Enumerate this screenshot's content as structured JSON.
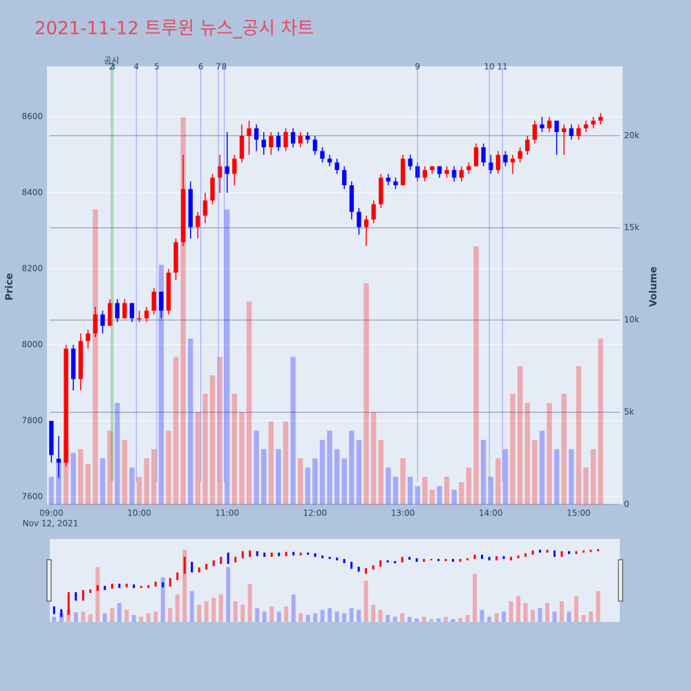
{
  "chart_data": {
    "type": "candlestick",
    "title": "2021-11-12 트루윈 뉴스_공시 차트",
    "y_label": "Price",
    "y2_label": "Volume",
    "date_label": "Nov 12, 2021",
    "up_color": "#ff0000",
    "down_color": "#0000ff",
    "x": [
      "09:00",
      "09:05",
      "09:10",
      "09:15",
      "09:20",
      "09:25",
      "09:30",
      "09:35",
      "09:40",
      "09:45",
      "09:50",
      "09:55",
      "10:00",
      "10:05",
      "10:10",
      "10:15",
      "10:20",
      "10:25",
      "10:30",
      "10:35",
      "10:40",
      "10:45",
      "10:50",
      "10:55",
      "11:00",
      "11:05",
      "11:10",
      "11:15",
      "11:20",
      "11:25",
      "11:30",
      "11:35",
      "11:40",
      "11:45",
      "11:50",
      "11:55",
      "12:00",
      "12:05",
      "12:10",
      "12:15",
      "12:20",
      "12:25",
      "12:30",
      "12:35",
      "12:40",
      "12:45",
      "12:50",
      "12:55",
      "13:00",
      "13:05",
      "13:10",
      "13:15",
      "13:20",
      "13:25",
      "13:30",
      "13:35",
      "13:40",
      "13:45",
      "13:50",
      "13:55",
      "14:00",
      "14:05",
      "14:10",
      "14:15",
      "14:20",
      "14:25",
      "14:30",
      "14:35",
      "14:40",
      "14:45",
      "14:50",
      "14:55",
      "15:00",
      "15:05",
      "15:10",
      "15:15"
    ],
    "open": [
      7800,
      7700,
      7690,
      7990,
      7910,
      8010,
      8030,
      8080,
      8050,
      8110,
      8070,
      8110,
      8070,
      8070,
      8090,
      8140,
      8090,
      8190,
      8270,
      8410,
      8310,
      8340,
      8380,
      8440,
      8470,
      8450,
      8490,
      8550,
      8570,
      8540,
      8520,
      8550,
      8520,
      8560,
      8530,
      8550,
      8540,
      8510,
      8490,
      8480,
      8460,
      8420,
      8350,
      8310,
      8330,
      8370,
      8440,
      8430,
      8420,
      8490,
      8470,
      8440,
      8460,
      8470,
      8450,
      8460,
      8440,
      8460,
      8470,
      8520,
      8480,
      8460,
      8500,
      8480,
      8490,
      8510,
      8540,
      8580,
      8570,
      8590,
      8560,
      8570,
      8550,
      8570,
      8580,
      8590
    ],
    "high": [
      7800,
      7760,
      8000,
      8000,
      8030,
      8040,
      8100,
      8090,
      8120,
      8120,
      8120,
      8110,
      8090,
      8100,
      8150,
      8140,
      8200,
      8280,
      8500,
      8430,
      8350,
      8400,
      8450,
      8500,
      8560,
      8500,
      8580,
      8590,
      8580,
      8560,
      8560,
      8560,
      8570,
      8570,
      8560,
      8560,
      8550,
      8520,
      8500,
      8490,
      8470,
      8430,
      8360,
      8340,
      8380,
      8450,
      8450,
      8440,
      8500,
      8500,
      8480,
      8470,
      8470,
      8470,
      8470,
      8470,
      8470,
      8480,
      8530,
      8530,
      8500,
      8510,
      8510,
      8500,
      8520,
      8550,
      8590,
      8600,
      8600,
      8590,
      8580,
      8580,
      8580,
      8590,
      8600,
      8610
    ],
    "low": [
      7690,
      7650,
      7680,
      7880,
      7880,
      7990,
      8020,
      8030,
      8050,
      8060,
      8070,
      8060,
      8060,
      8060,
      8080,
      8070,
      8080,
      8170,
      8260,
      8280,
      8280,
      8320,
      8370,
      8400,
      8400,
      8420,
      8480,
      8500,
      8510,
      8500,
      8500,
      8510,
      8510,
      8520,
      8520,
      8530,
      8500,
      8480,
      8470,
      8450,
      8410,
      8330,
      8290,
      8260,
      8320,
      8360,
      8420,
      8410,
      8420,
      8460,
      8430,
      8430,
      8450,
      8440,
      8440,
      8430,
      8430,
      8450,
      8470,
      8470,
      8450,
      8450,
      8470,
      8450,
      8480,
      8500,
      8530,
      8560,
      8560,
      8500,
      8500,
      8540,
      8540,
      8560,
      8570,
      8580
    ],
    "close": [
      7710,
      7690,
      7990,
      7910,
      8010,
      8030,
      8080,
      8050,
      8110,
      8070,
      8110,
      8070,
      8070,
      8090,
      8140,
      8090,
      8190,
      8270,
      8410,
      8310,
      8340,
      8380,
      8440,
      8470,
      8450,
      8490,
      8550,
      8570,
      8540,
      8520,
      8550,
      8520,
      8560,
      8530,
      8550,
      8540,
      8510,
      8490,
      8480,
      8460,
      8420,
      8350,
      8310,
      8330,
      8370,
      8440,
      8430,
      8420,
      8490,
      8470,
      8440,
      8460,
      8470,
      8450,
      8460,
      8440,
      8460,
      8470,
      8520,
      8480,
      8460,
      8500,
      8480,
      8490,
      8510,
      8540,
      8580,
      8570,
      8590,
      8560,
      8570,
      8550,
      8570,
      8580,
      8590,
      8600
    ],
    "volume": [
      1500,
      2500,
      3500,
      2800,
      3000,
      2200,
      16000,
      2500,
      4000,
      5500,
      3500,
      2000,
      1500,
      2500,
      3000,
      13000,
      4000,
      8000,
      21000,
      9000,
      5000,
      6000,
      7000,
      8000,
      16000,
      6000,
      5000,
      11000,
      4000,
      3000,
      4500,
      3000,
      4500,
      8000,
      2500,
      2000,
      2500,
      3500,
      4000,
      3000,
      2500,
      4000,
      3500,
      12000,
      5000,
      3500,
      2000,
      1500,
      2500,
      1500,
      1000,
      1500,
      800,
      1000,
      1500,
      800,
      1200,
      2000,
      14000,
      3500,
      1500,
      2500,
      3000,
      6000,
      7500,
      5500,
      3500,
      4000,
      5500,
      3000,
      6000,
      3000,
      7500,
      2000,
      3000,
      9000
    ],
    "xlim": [
      "08:57",
      "15:30"
    ],
    "xticks": [
      "09:00",
      "10:00",
      "11:00",
      "12:00",
      "13:00",
      "14:00",
      "15:00"
    ],
    "ylim": [
      7580,
      8733
    ],
    "yticks": [
      7600,
      7800,
      8000,
      8200,
      8400,
      8600
    ],
    "y2lim": [
      0,
      23760
    ],
    "y2ticks": [
      0,
      {
        "value": 5000,
        "label": "5k"
      },
      {
        "value": 10000,
        "label": "10k"
      },
      {
        "value": 15000,
        "label": "15k"
      },
      {
        "value": 20000,
        "label": "20k"
      }
    ],
    "disclosure_label": "공시",
    "events": [
      {
        "x": "09:41",
        "label": "2",
        "color": "#3cb043"
      },
      {
        "x": "09:42",
        "label": "3",
        "color": "#3cb043"
      },
      {
        "x": "09:58",
        "label": "4",
        "color": "#6f7fff"
      },
      {
        "x": "10:12",
        "label": "5",
        "color": "#6f7fff"
      },
      {
        "x": "10:42",
        "label": "6",
        "color": "#6f7fff"
      },
      {
        "x": "10:54",
        "label": "7",
        "color": "#6f7fff"
      },
      {
        "x": "10:58",
        "label": "8",
        "color": "#6f7fff"
      },
      {
        "x": "13:10",
        "label": "9",
        "color": "#6f7fff"
      },
      {
        "x": "13:59",
        "label": "10",
        "color": "#6f7fff"
      },
      {
        "x": "14:08",
        "label": "11",
        "color": "#6f7fff"
      }
    ]
  }
}
